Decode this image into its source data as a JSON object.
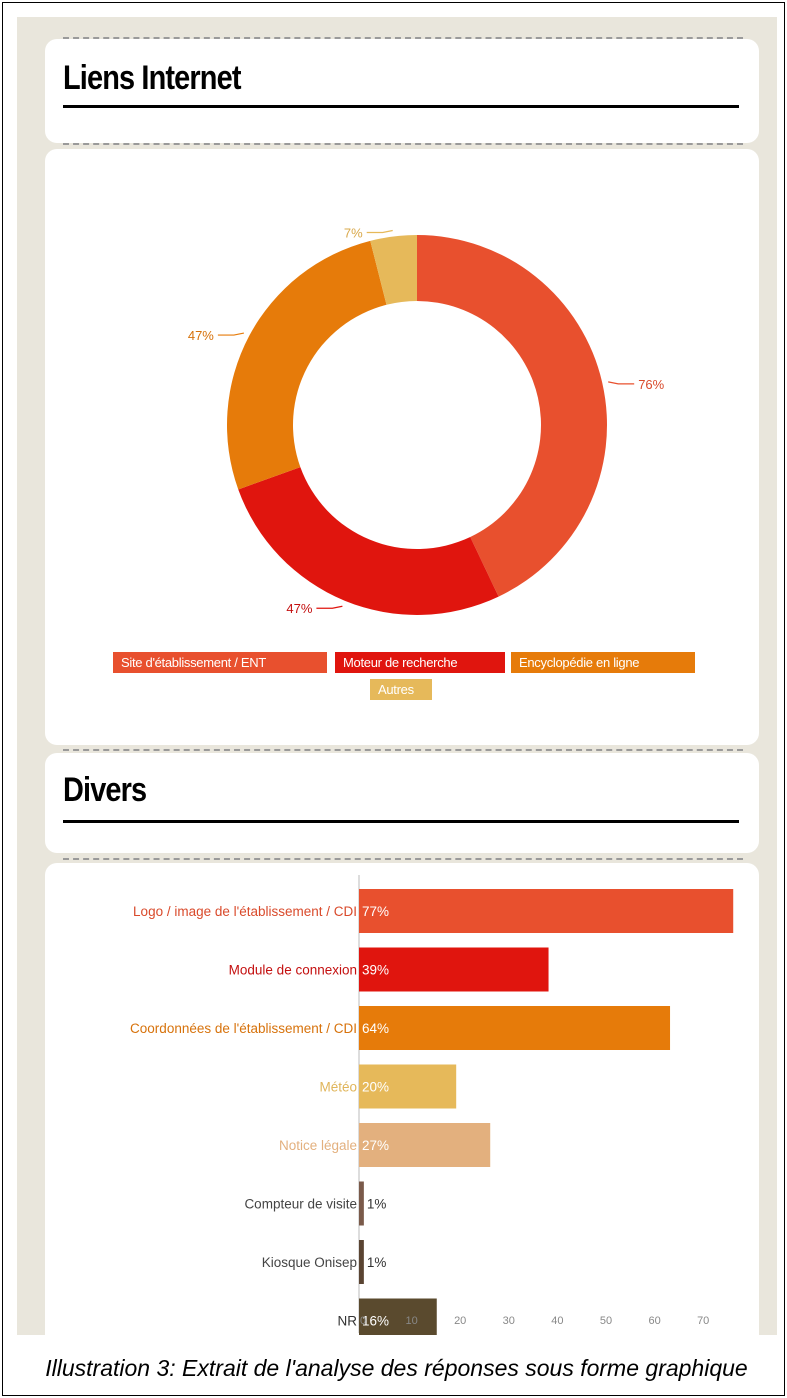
{
  "sections": {
    "links_title": "Liens Internet",
    "misc_title": "Divers"
  },
  "caption": "Illustration 3: Extrait de l'analyse des réponses sous forme graphique",
  "chart_data": [
    {
      "type": "pie",
      "title": "",
      "categories": [
        "Site d'établissement / ENT",
        "Moteur de recherche",
        "Encyclopédie en ligne",
        "Autres"
      ],
      "values": [
        76,
        47,
        47,
        7
      ],
      "labels": [
        "76%",
        "47%",
        "47%",
        "7%"
      ],
      "colors": [
        "#e8502e",
        "#e0150e",
        "#e67b0a",
        "#e6b95a"
      ],
      "donut": true,
      "legend": "bottom"
    },
    {
      "type": "bar",
      "orientation": "horizontal",
      "title": "",
      "categories": [
        "Logo / image de l'établissement / CDI",
        "Module de connexion",
        "Coordonnées de l'établissement / CDI",
        "Météo",
        "Notice légale",
        "Compteur de visite",
        "Kiosque Onisep",
        "NR"
      ],
      "values": [
        77,
        39,
        64,
        20,
        27,
        1,
        1,
        16
      ],
      "labels": [
        "77%",
        "39%",
        "64%",
        "20%",
        "27%",
        "1%",
        "1%",
        "16%"
      ],
      "colors": [
        "#e8502e",
        "#e0150e",
        "#e67b0a",
        "#e6b95a",
        "#e3b07e",
        "#7a5a4a",
        "#5a4432",
        "#5a4a2e"
      ],
      "label_colors": [
        "#d94a2b",
        "#c41010",
        "#d7720b",
        "#e0b55a",
        "#e3b07e",
        "#444444",
        "#444444",
        "#333333"
      ],
      "xticks": [
        0,
        10,
        20,
        30,
        40,
        50,
        60,
        70
      ],
      "xlim": [
        0,
        80
      ],
      "grid": false
    }
  ]
}
